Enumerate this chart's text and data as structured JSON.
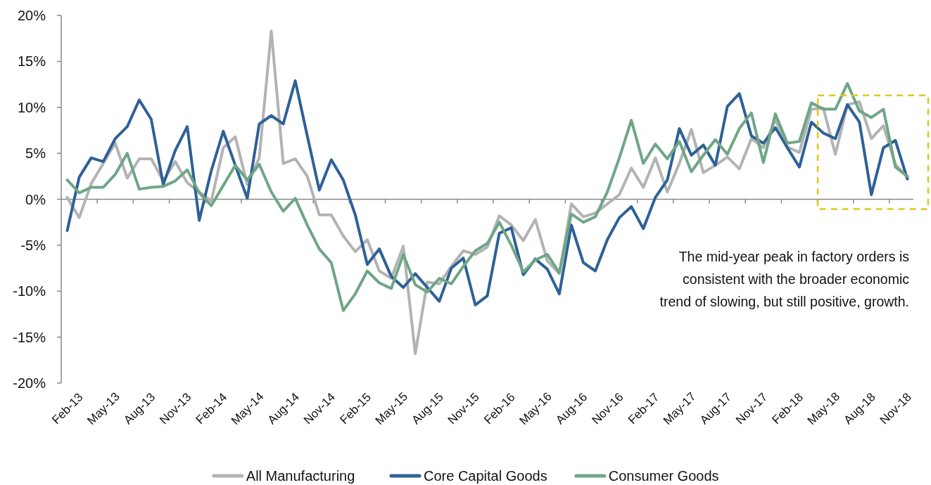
{
  "chart_data": {
    "type": "line",
    "categories": [
      "Feb-13",
      null,
      null,
      "May-13",
      null,
      null,
      "Aug-13",
      null,
      null,
      "Nov-13",
      null,
      null,
      "Feb-14",
      null,
      null,
      "May-14",
      null,
      null,
      "Aug-14",
      null,
      null,
      "Nov-14",
      null,
      null,
      "Feb-15",
      null,
      null,
      "May-15",
      null,
      null,
      "Aug-15",
      null,
      null,
      "Nov-15",
      null,
      null,
      "Feb-16",
      null,
      null,
      "May-16",
      null,
      null,
      "Aug-16",
      null,
      null,
      "Nov-16",
      null,
      null,
      "Feb-17",
      null,
      null,
      "May-17",
      null,
      null,
      "Aug-17",
      null,
      null,
      "Nov-17",
      null,
      null,
      "Feb-18",
      null,
      null,
      "May-18",
      null,
      null,
      "Aug-18",
      null,
      null,
      "Nov-18",
      null
    ],
    "series": [
      {
        "name": "All Manufacturing",
        "color": "#b3b3b3",
        "values": [
          0.2,
          -2.0,
          1.7,
          3.9,
          6.1,
          2.3,
          4.4,
          4.4,
          2.0,
          4.1,
          1.8,
          0.8,
          -0.2,
          5.6,
          6.8,
          1.6,
          4.5,
          18.3,
          3.9,
          4.4,
          2.5,
          -1.7,
          -1.7,
          -4.0,
          -5.7,
          -4.4,
          -7.8,
          -8.6,
          -5.1,
          -16.8,
          -9.0,
          -9.2,
          -7.3,
          -5.6,
          -6.0,
          -5.2,
          -1.8,
          -2.8,
          -4.5,
          -2.2,
          -6.7,
          -8.1,
          -0.5,
          -1.9,
          -1.5,
          -0.5,
          0.5,
          3.4,
          1.3,
          4.5,
          0.8,
          3.9,
          7.6,
          2.9,
          3.7,
          4.6,
          3.3,
          6.6,
          5.6,
          8.7,
          5.7,
          5.1,
          9.8,
          9.9,
          4.9,
          10.3,
          10.6,
          6.6,
          8.0,
          3.8,
          2.4
        ]
      },
      {
        "name": "Core Capital Goods",
        "color": "#2e6196",
        "values": [
          -3.4,
          2.4,
          4.5,
          4.1,
          6.6,
          7.9,
          10.8,
          8.7,
          1.6,
          5.3,
          7.9,
          -2.3,
          3.1,
          7.4,
          3.7,
          0.1,
          8.2,
          9.1,
          8.2,
          12.9,
          6.9,
          1.0,
          4.3,
          2.1,
          -1.7,
          -7.1,
          -5.4,
          -8.4,
          -9.6,
          -8.1,
          -9.6,
          -11.1,
          -7.5,
          -6.4,
          -11.5,
          -10.5,
          -3.7,
          -3.1,
          -8.2,
          -6.5,
          -7.6,
          -10.3,
          -2.8,
          -6.9,
          -7.8,
          -4.4,
          -2.0,
          -0.8,
          -3.2,
          0.2,
          2.1,
          7.7,
          4.8,
          5.9,
          3.7,
          10.1,
          11.5,
          6.9,
          6.1,
          7.8,
          5.6,
          3.5,
          8.4,
          7.2,
          6.6,
          10.3,
          8.4,
          0.5,
          5.6,
          6.4,
          2.2
        ]
      },
      {
        "name": "Consumer Goods",
        "color": "#6fa686",
        "values": [
          2.1,
          0.7,
          1.3,
          1.3,
          2.7,
          5.0,
          1.1,
          1.3,
          1.4,
          2.0,
          3.2,
          0.7,
          -0.7,
          1.5,
          3.7,
          2.1,
          3.8,
          0.8,
          -1.3,
          0.1,
          -2.8,
          -5.4,
          -6.9,
          -12.1,
          -10.3,
          -7.8,
          -9.1,
          -9.7,
          -6.0,
          -9.3,
          -10.1,
          -8.6,
          -9.2,
          -7.3,
          -5.6,
          -4.8,
          -2.5,
          -5.0,
          -7.9,
          -6.6,
          -6.0,
          -8.0,
          -1.6,
          -2.5,
          -1.9,
          0.8,
          4.5,
          8.6,
          3.9,
          6.0,
          4.4,
          6.3,
          3.0,
          4.8,
          6.5,
          4.9,
          7.7,
          9.4,
          4.0,
          9.3,
          6.1,
          6.3,
          10.5,
          9.8,
          9.8,
          12.6,
          9.6,
          8.9,
          9.8,
          3.5,
          2.5
        ]
      }
    ],
    "ylim": [
      -20,
      20
    ],
    "yticks": [
      {
        "value": -20,
        "label": "-20%"
      },
      {
        "value": -15,
        "label": "-15%"
      },
      {
        "value": -10,
        "label": "-10%"
      },
      {
        "value": -5,
        "label": "-5%"
      },
      {
        "value": 0,
        "label": "0%"
      },
      {
        "value": 5,
        "label": "5%"
      },
      {
        "value": 10,
        "label": "10%"
      },
      {
        "value": 15,
        "label": "15%"
      },
      {
        "value": 20,
        "label": "20%"
      }
    ],
    "legend": "bottom",
    "annotations": [
      "The mid-year peak in factory orders is\nconsistent with the broader economic\ntrend of slowing, but still positive, growth."
    ]
  }
}
